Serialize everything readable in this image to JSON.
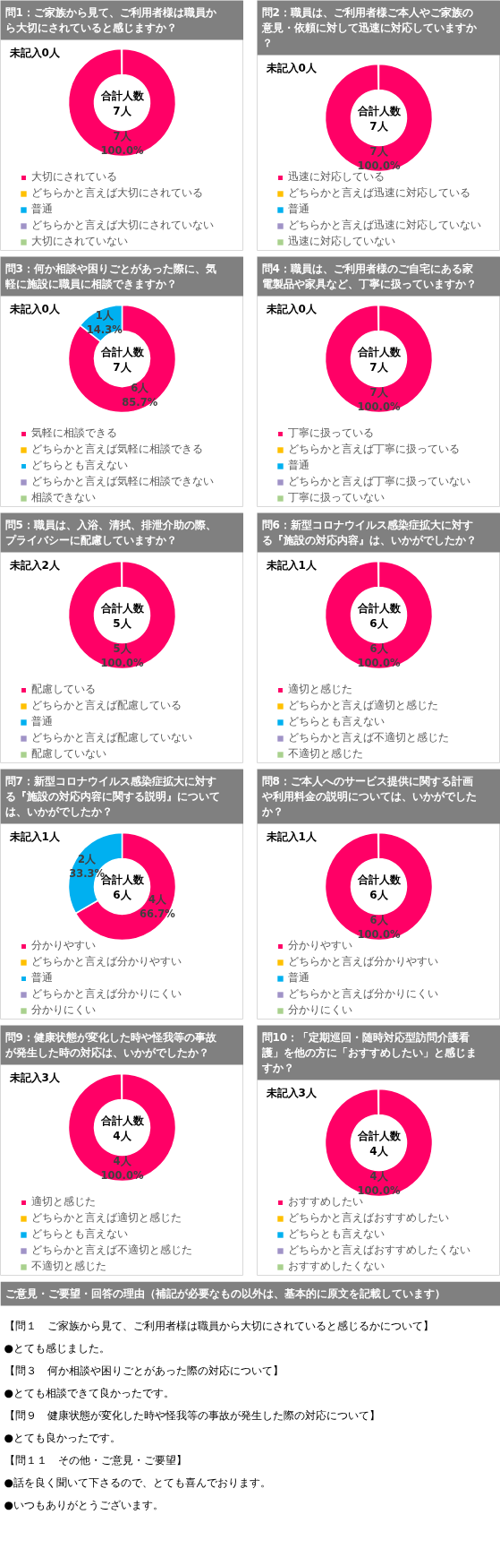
{
  "chart_data": [
    {
      "type": "donut",
      "title": "問1：ご家族から見て、ご利用者様は職員から大切にされていると感じますか？",
      "categories": [
        "大切にされている",
        "どちらかと言えば大切にされている",
        "普通",
        "どちらかと言えば大切にされていない",
        "大切にされていない"
      ],
      "values": [
        7,
        0,
        0,
        0,
        0
      ],
      "colors": [
        "#ff0066",
        "#ffc000",
        "#00b0f0",
        "#a093c7",
        "#a9d18e"
      ],
      "value_labels": [
        "7人\n100.0%",
        null,
        null,
        null,
        null
      ],
      "annotations": [
        "未記入0人",
        "合計人数",
        "7人"
      ],
      "legend": "bottom"
    },
    {
      "type": "donut",
      "title": "問2：職員は、ご利用者様ご本人やご家族の意見・依頼に対して迅速に対応していますか？",
      "categories": [
        "迅速に対応している",
        "どちらかと言えば迅速に対応している",
        "普通",
        "どちらかと言えば迅速に対応していない",
        "迅速に対応していない"
      ],
      "values": [
        7,
        0,
        0,
        0,
        0
      ],
      "colors": [
        "#ff0066",
        "#ffc000",
        "#00b0f0",
        "#a093c7",
        "#a9d18e"
      ],
      "value_labels": [
        "7人\n100.0%",
        null,
        null,
        null,
        null
      ],
      "annotations": [
        "未記入0人",
        "合計人数",
        "7人"
      ],
      "legend": "bottom"
    },
    {
      "type": "donut",
      "title": "問3：何か相談や困りごとがあった際に、気軽に施設に職員に相談できますか？",
      "categories": [
        "気軽に相談できる",
        "どちらかと言えば気軽に相談できる",
        "どちらとも言えない",
        "どちらかと言えば気軽に相談できない",
        "相談できない"
      ],
      "values": [
        6,
        0,
        1,
        0,
        0
      ],
      "colors": [
        "#ff0066",
        "#ffc000",
        "#00b0f0",
        "#a093c7",
        "#a9d18e"
      ],
      "value_labels": [
        "6人\n85.7%",
        null,
        "1人\n14.3%",
        null,
        null
      ],
      "annotations": [
        "未記入0人",
        "合計人数",
        "7人"
      ],
      "legend": "bottom"
    },
    {
      "type": "donut",
      "title": "問4：職員は、ご利用者様のご自宅にある家電製品や家具など、丁寧に扱っていますか？",
      "categories": [
        "丁寧に扱っている",
        "どちらかと言えば丁寧に扱っている",
        "普通",
        "どちらかと言えば丁寧に扱っていない",
        "丁寧に扱っていない"
      ],
      "values": [
        7,
        0,
        0,
        0,
        0
      ],
      "colors": [
        "#ff0066",
        "#ffc000",
        "#00b0f0",
        "#a093c7",
        "#a9d18e"
      ],
      "value_labels": [
        "7人\n100.0%",
        null,
        null,
        null,
        null
      ],
      "annotations": [
        "未記入0人",
        "合計人数",
        "7人"
      ],
      "legend": "bottom"
    },
    {
      "type": "donut",
      "title": "問5：職員は、入浴、清拭、排泄介助の際、プライバシーに配慮していますか？",
      "categories": [
        "配慮している",
        "どちらかと言えば配慮している",
        "普通",
        "どちらかと言えば配慮していない",
        "配慮していない"
      ],
      "values": [
        5,
        0,
        0,
        0,
        0
      ],
      "colors": [
        "#ff0066",
        "#ffc000",
        "#00b0f0",
        "#a093c7",
        "#a9d18e"
      ],
      "value_labels": [
        "5人\n100.0%",
        null,
        null,
        null,
        null
      ],
      "annotations": [
        "未記入2人",
        "合計人数",
        "5人"
      ],
      "legend": "bottom"
    },
    {
      "type": "donut",
      "title": "問6：新型コロナウイルス感染症拡大に対する『施設の対応内容』は、いかがでしたか？",
      "categories": [
        "適切と感じた",
        "どちらかと言えば適切と感じた",
        "どちらとも言えない",
        "どちらかと言えば不適切と感じた",
        "不適切と感じた"
      ],
      "values": [
        6,
        0,
        0,
        0,
        0
      ],
      "colors": [
        "#ff0066",
        "#ffc000",
        "#00b0f0",
        "#a093c7",
        "#a9d18e"
      ],
      "value_labels": [
        "6人\n100.0%",
        null,
        null,
        null,
        null
      ],
      "annotations": [
        "未記入1人",
        "合計人数",
        "6人"
      ],
      "legend": "bottom"
    },
    {
      "type": "donut",
      "title": "問7：新型コロナウイルス感染症拡大に対する『施設の対応内容に関する説明』については、いかがでしたか？",
      "categories": [
        "分かりやすい",
        "どちらかと言えば分かりやすい",
        "普通",
        "どちらかと言えば分かりにくい",
        "分かりにくい"
      ],
      "values": [
        4,
        0,
        2,
        0,
        0
      ],
      "colors": [
        "#ff0066",
        "#ffc000",
        "#00b0f0",
        "#a093c7",
        "#a9d18e"
      ],
      "value_labels": [
        "4人\n66.7%",
        null,
        "2人\n33.3%",
        null,
        null
      ],
      "annotations": [
        "未記入1人",
        "合計人数",
        "6人"
      ],
      "legend": "bottom"
    },
    {
      "type": "donut",
      "title": "問8：ご本人へのサービス提供に関する計画や利用料金の説明については、いかがでしたか？",
      "categories": [
        "分かりやすい",
        "どちらかと言えば分かりやすい",
        "普通",
        "どちらかと言えば分かりにくい",
        "分かりにくい"
      ],
      "values": [
        6,
        0,
        0,
        0,
        0
      ],
      "colors": [
        "#ff0066",
        "#ffc000",
        "#00b0f0",
        "#a093c7",
        "#a9d18e"
      ],
      "value_labels": [
        "6人\n100.0%",
        null,
        null,
        null,
        null
      ],
      "annotations": [
        "未記入1人",
        "合計人数",
        "6人"
      ],
      "legend": "bottom"
    },
    {
      "type": "donut",
      "title": "問9：健康状態が変化した時や怪我等の事故が発生した時の対応は、いかがでしたか？",
      "categories": [
        "適切と感じた",
        "どちらかと言えば適切と感じた",
        "どちらとも言えない",
        "どちらかと言えば不適切と感じた",
        "不適切と感じた"
      ],
      "values": [
        4,
        0,
        0,
        0,
        0
      ],
      "colors": [
        "#ff0066",
        "#ffc000",
        "#00b0f0",
        "#a093c7",
        "#a9d18e"
      ],
      "value_labels": [
        "4人\n100.0%",
        null,
        null,
        null,
        null
      ],
      "annotations": [
        "未記入3人",
        "合計人数",
        "4人"
      ],
      "legend": "bottom"
    },
    {
      "type": "donut",
      "title": "問10：「定期巡回・随時対応型訪問介護看護」を他の方に「おすすめしたい」と感じますか？",
      "categories": [
        "おすすめしたい",
        "どちらかと言えばおすすめしたい",
        "どちらとも言えない",
        "どちらかと言えばおすすめしたくない",
        "おすすめしたくない"
      ],
      "values": [
        4,
        0,
        0,
        0,
        0
      ],
      "colors": [
        "#ff0066",
        "#ffc000",
        "#00b0f0",
        "#a093c7",
        "#a9d18e"
      ],
      "value_labels": [
        "4人\n100.0%",
        null,
        null,
        null,
        null
      ],
      "annotations": [
        "未記入3人",
        "合計人数",
        "4人"
      ],
      "legend": "bottom"
    },
    {
      "type": "other",
      "title": "ご意見・ご要望・回答の理由（補記が必要なもの以外は、基本的に原文を記載しています）",
      "annotations": [
        "【問１　ご家族から見て、ご利用者様は職員から大切にされていると感じるかについて】",
        "●とても感じました。",
        "【問３　何か相談や困りごとがあった際の対応について】",
        "●とても相談できて良かったです。",
        "【問９　健康状態が変化した時や怪我等の事故が発生した際の対応について】",
        "●とても良かったです。",
        "【問１１　その他・ご意見・ご要望】",
        "●話を良く聞いて下さるので、とても喜んでおります。",
        "●いつもありがとうございます。"
      ]
    }
  ]
}
